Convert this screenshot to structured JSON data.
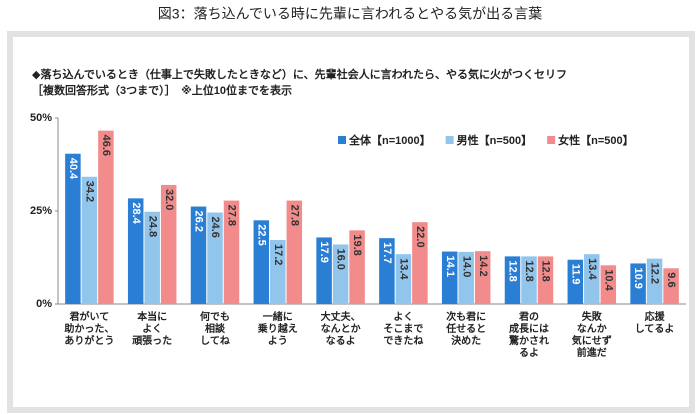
{
  "title": "図3：落ち込んでいる時に先輩に言われるとやる気が出る言葉",
  "chart_data": {
    "type": "bar",
    "subtitle": "◆落ち込んでいるとき（仕事上で失敗したときなど）に、先輩社会人に言われたら、やる気に火がつくセリフ",
    "note": "［複数回答形式（3つまで）］　※上位10位までを表示",
    "categories": [
      "君がいて\n助かった、\nありがとう",
      "本当に\nよく\n頑張った",
      "何でも\n相談\nしてね",
      "一緒に\n乗り越え\nよう",
      "大丈夫、\nなんとか\nなるよ",
      "よく\nそこまで\nできたね",
      "次も君に\n任せると\n決めた",
      "君の\n成長には\n驚かされ\nるよ",
      "失敗\nなんか\n気にせず\n前進だ",
      "応援\nしてるよ"
    ],
    "series": [
      {
        "name": "全体【n=1000】",
        "color": "#2a7fd4",
        "values": [
          40.4,
          28.4,
          26.2,
          22.5,
          17.9,
          17.7,
          14.1,
          12.8,
          11.9,
          10.9
        ],
        "value_labels": [
          "40.4",
          "28.4",
          "26.2",
          "22.5",
          "17.9",
          "17.7",
          "14.1",
          "12.8",
          "11.9",
          "10.9"
        ]
      },
      {
        "name": "男性【n=500】",
        "color": "#92c5ec",
        "values": [
          34.2,
          24.8,
          24.6,
          17.2,
          16.0,
          13.4,
          14.0,
          12.8,
          13.4,
          12.2
        ],
        "value_labels": [
          "34.2",
          "24.8",
          "24.6",
          "17.2",
          "16.0",
          "13.4",
          "14.0",
          "12.8",
          "13.4",
          "12.2"
        ]
      },
      {
        "name": "女性【n=500】",
        "color": "#f28c8c",
        "values": [
          46.6,
          32.0,
          27.8,
          27.8,
          19.8,
          22.0,
          14.2,
          12.8,
          10.4,
          9.6
        ],
        "value_labels": [
          "46.6",
          "32.0",
          "27.8",
          "27.8",
          "19.8",
          "22.0",
          "14.2",
          "12.8",
          "10.4",
          "9.6"
        ]
      }
    ],
    "ylim": [
      0,
      50
    ],
    "yticks": [
      {
        "value": 0,
        "label": "0%"
      },
      {
        "value": 25,
        "label": "25%"
      },
      {
        "value": 50,
        "label": "50%"
      }
    ],
    "grid": false,
    "legend": "top"
  }
}
